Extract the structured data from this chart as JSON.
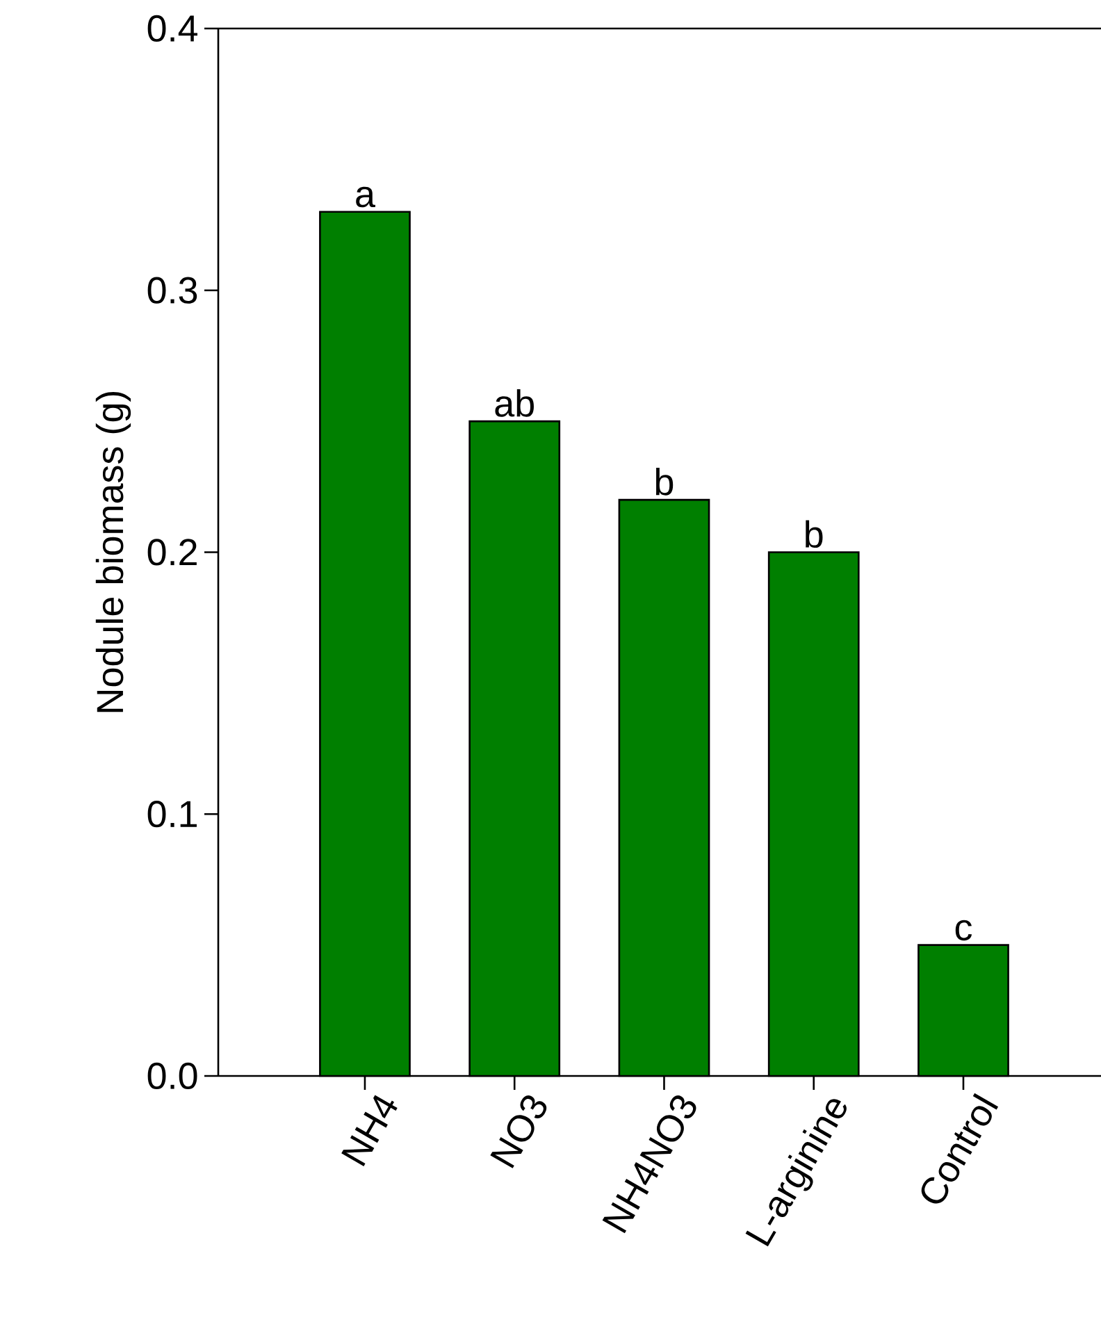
{
  "chart_data": {
    "type": "bar",
    "ylabel": "Nodule biomass (g)",
    "categories": [
      "NH4",
      "NO3",
      "NH4NO3",
      "L-arginine",
      "Control"
    ],
    "values": [
      0.33,
      0.25,
      0.22,
      0.2,
      0.05
    ],
    "color": "#007f00",
    "value_labels": [
      "a",
      "ab",
      "b",
      "b",
      "c"
    ],
    "ylim": [
      0,
      0.4
    ],
    "yticks": [
      {
        "value": 0,
        "label": "0.0"
      },
      0.1,
      0.2,
      0.3,
      0.4
    ],
    "grid": false
  }
}
